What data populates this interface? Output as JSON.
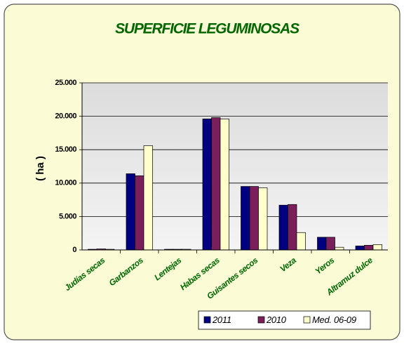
{
  "chart_data": {
    "type": "bar",
    "title": "SUPERFICIE LEGUMINOSAS",
    "y_label": "( ha )",
    "categories": [
      "Judías secas",
      "Garbanzos",
      "Lentejas",
      "Habas secas",
      "Guisantes secos",
      "Veza",
      "Yeros",
      "Altramuz dulce"
    ],
    "series": [
      {
        "name": "2011",
        "color": "#000080",
        "values": [
          100,
          11400,
          100,
          19600,
          9500,
          6700,
          1900,
          600
        ]
      },
      {
        "name": "2010",
        "color": "#7a1f5c",
        "values": [
          150,
          11100,
          100,
          19800,
          9500,
          6800,
          1900,
          700
        ]
      },
      {
        "name": "Med. 06-09",
        "color": "#ffffcc",
        "values": [
          100,
          15600,
          100,
          19600,
          9300,
          2600,
          400,
          800
        ]
      }
    ],
    "ylim": [
      0,
      25000
    ],
    "yticks": [
      0,
      {
        "value": 5000,
        "label": "5.000"
      },
      {
        "value": 10000,
        "label": "10.000"
      },
      {
        "value": 15000,
        "label": "15.000"
      },
      {
        "value": 20000,
        "label": "20.000"
      },
      {
        "value": 25000,
        "label": "25.000"
      }
    ],
    "grid": true,
    "legend": "bottom-right"
  }
}
